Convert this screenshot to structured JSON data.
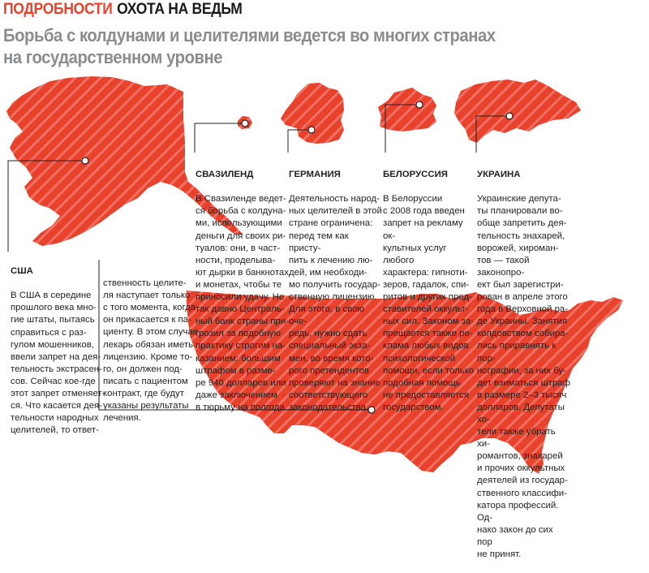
{
  "header": {
    "section": "ПОДРОБНОСТИ",
    "topic": "ОХОТА НА ВЕДЬМ"
  },
  "subtitle": "Борьба с колдунами и целителями ведется во многих странах\nна государственном уровне",
  "colors": {
    "accent": "#e8412c",
    "stripe": "#f07062",
    "marker": "#ffffff",
    "leader": "#231f20"
  },
  "countries": {
    "usa": {
      "name": "США",
      "text1": "В США в середине\nпрошлого века мно-\nгие штаты, пытаясь\nсправиться с раз-\nгулом мошенников,\nввели запрет на дея-\nтельность экстрасен-\nсов. Сейчас кое-где\nэтот запрет отменяет-\nся. Что касается дея-\nтельности народных\nцелителей, то ответ-",
      "text2": "ственность целите-\nля наступает только\nс того момента, когда\nон прикасается к па-\nциенту. В этом случае\nлекарь обязан иметь\nлицензию. Кроме то-\nго, он должен под-\nписать с пациентом\nконтракт, где будут\nуказаны результаты\nлечения."
    },
    "swaziland": {
      "name": "СВАЗИЛЕНД",
      "text": "В Свазиленде ведет-\nся борьба с колдуна-\nми, использующими\nденьги для своих ри-\nтуалов: они, в част-\nности, проделыва-\nют дырки в банкнотах\nи монетах, чтобы те\nприносили удачу. Не\nтак давно Централь-\nный банк страны при-\nгрозил за подобную\nпрактику строгим на-\nказанием: большим\nштрафом в разме-\nре 940 долларов или\nдаже заключением\nв тюрьму на полгода."
    },
    "germany": {
      "name": "ГЕРМАНИЯ",
      "text": "Деятельность народ-\nных целителей в этой\nстране ограничена:\nперед тем как присту-\nпить к лечению лю-\nдей, им необходи-\nмо получить государ-\nственную лицензию.\nДля этого, в свою оче-\nредь, нужно сдать\nспециальный экза-\nмен, во время кото-\nрого претендентов\nпроверяют на знание\nсоответствующего\nзаконодательства."
    },
    "belarus": {
      "name": "БЕЛОРУССИЯ",
      "text": "В Белоруссии\nс 2008 года введен\nзапрет на рекламу ок-\nкультных услуг любого\nхарактера: гипноти-\nзеров, гадалок, спи-\nритов и других пред-\nставителей оккульт-\nных сил. Законом за-\nпрещается также ре-\nклама любых видов\nпсихологической\nпомощи, если только\nподобная помощь\nне предоставляется\nгосударством."
    },
    "ukraine": {
      "name": "УКРАИНА",
      "text": "Украинские депута-\nты планировали во-\nобще запретить дея-\nтельность знахарей,\nворожей, хироман-\nтов — такой законопро-\nект был зарегистри-\nрован в апреле этого\nгода в Верховной ра-\nде Украины. Занятия\nколдовством собира-\nлись приравнять к пор-\nнографии, за них бу-\nдет взиматься штраф\nв размере 2–3 тысяч\nдолларов. Депутаты хо-\nтели также убрать хи-\nромантов, знахарей\nи прочих оккультных\nдеятелей из государ-\nственного классифи-\nкатора профессий. Од-\nнако закон до сих пор\nне принят."
    }
  }
}
